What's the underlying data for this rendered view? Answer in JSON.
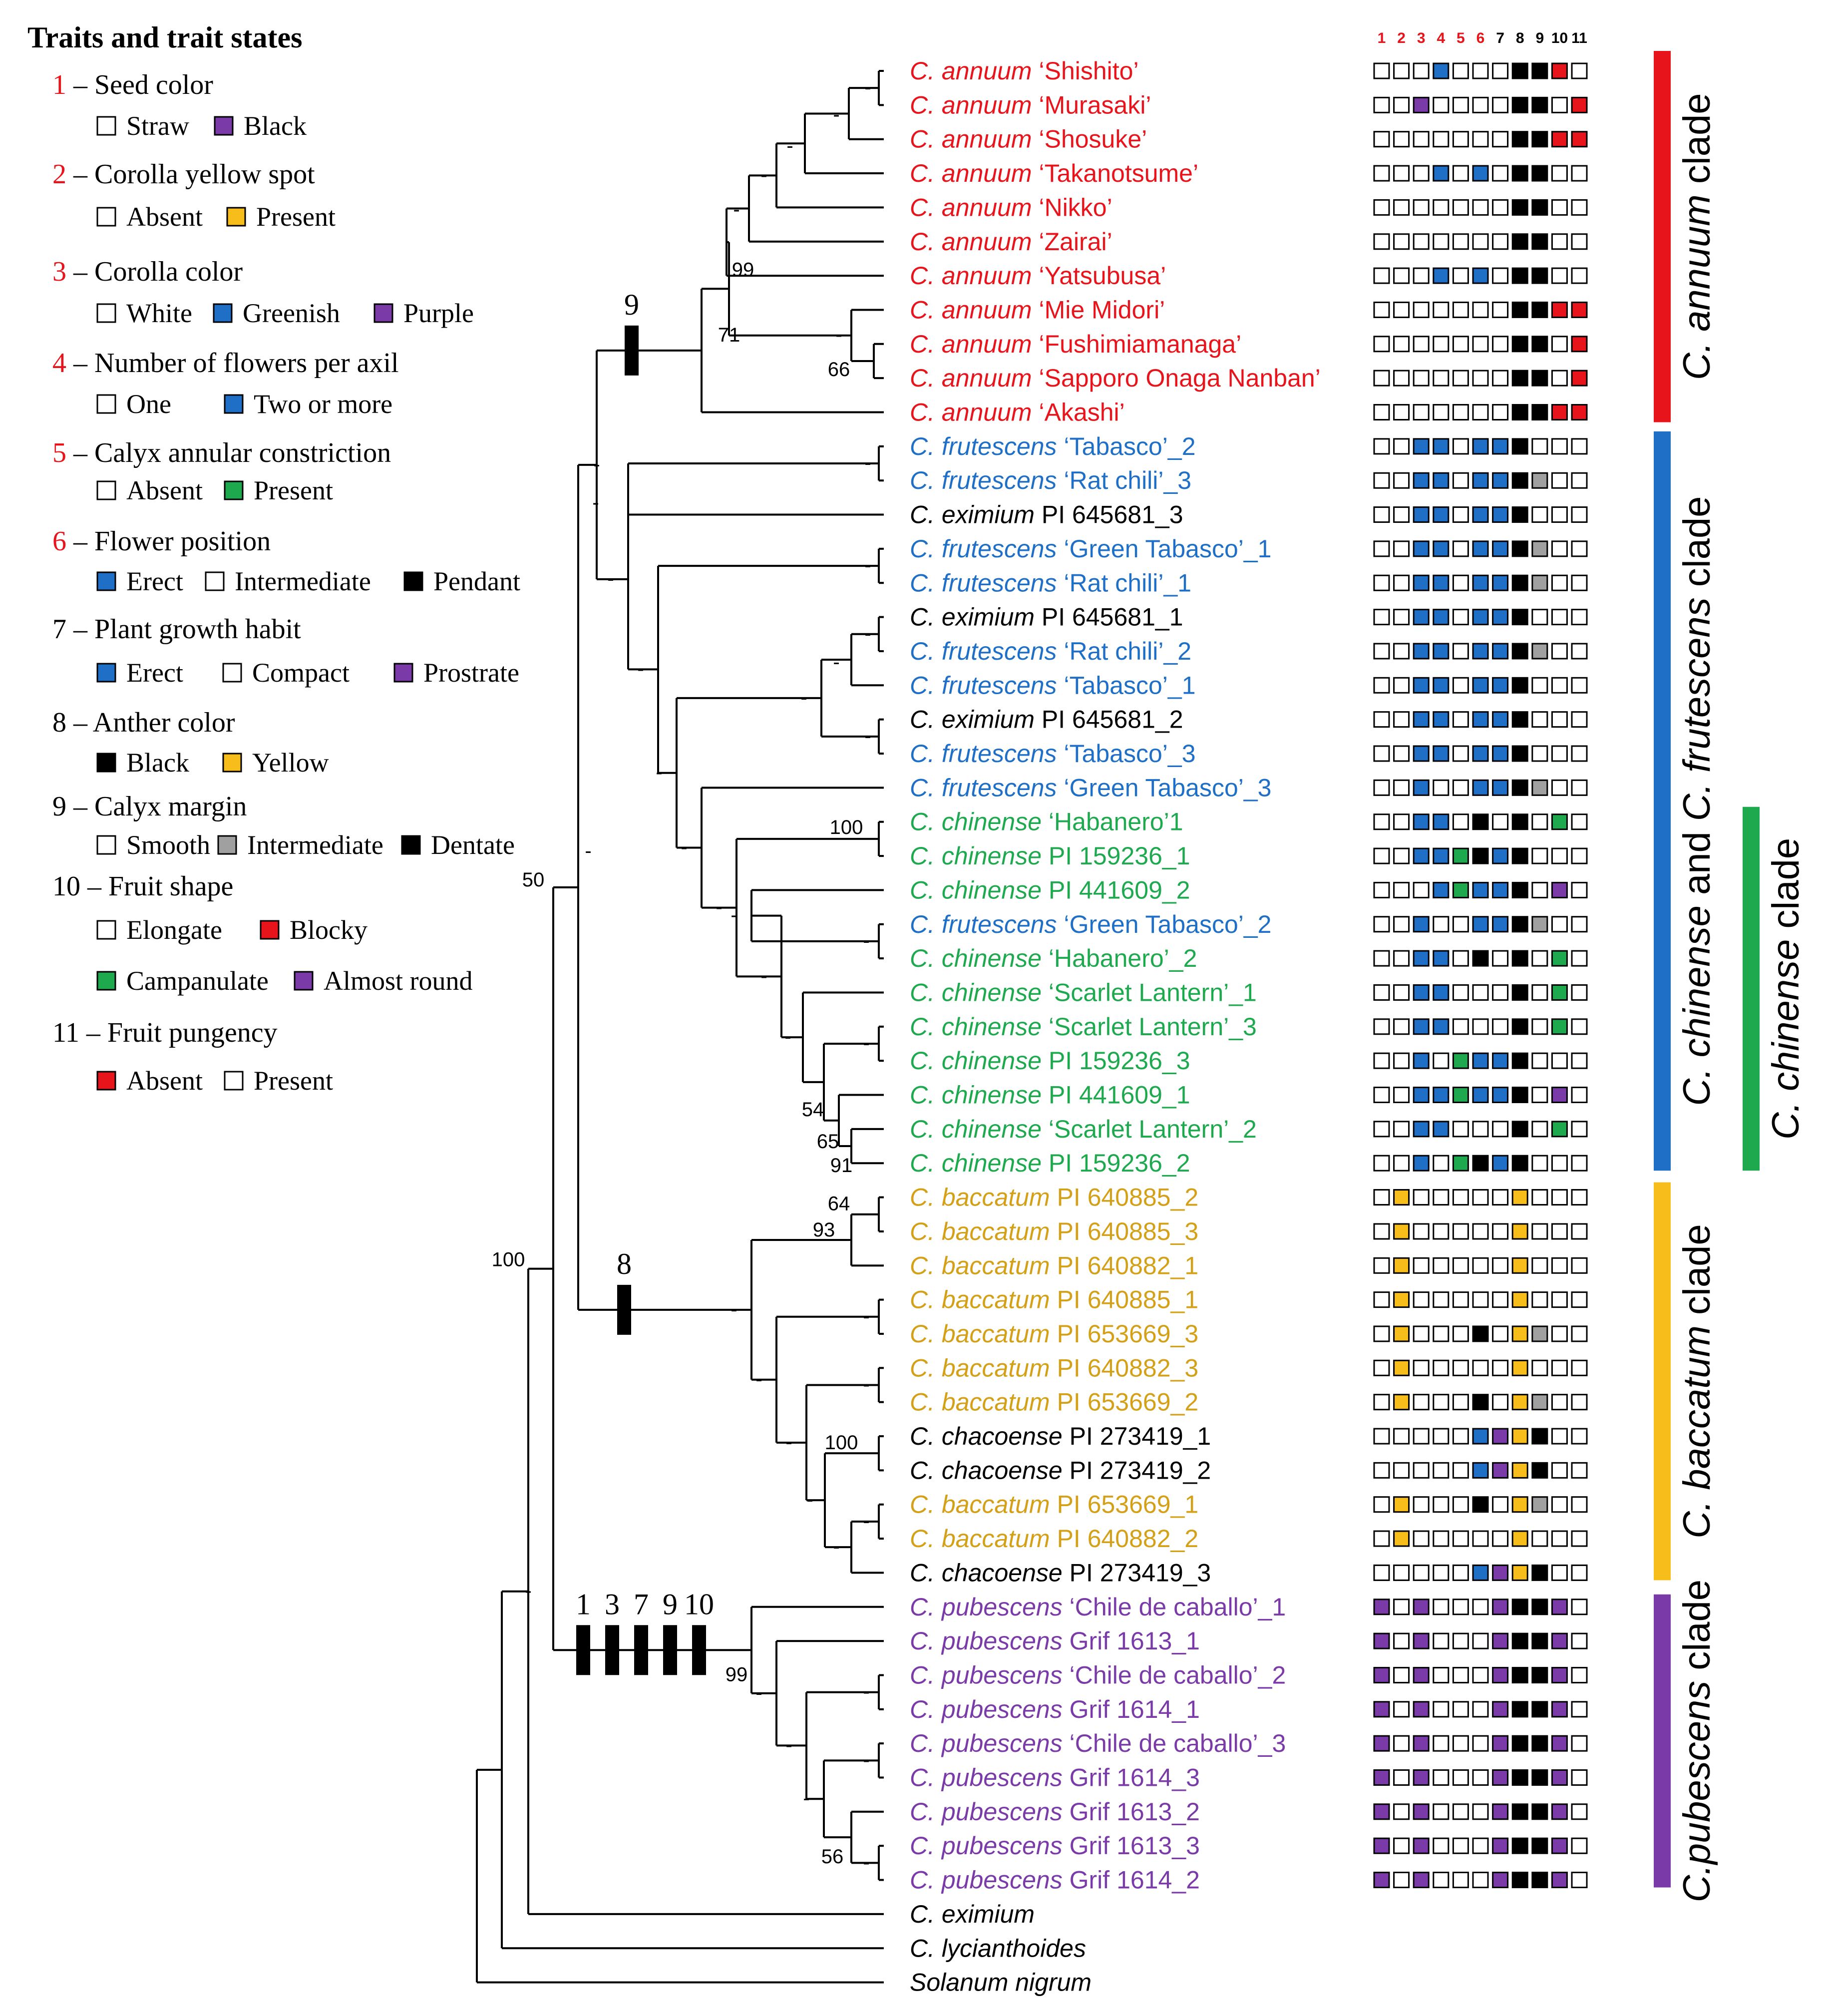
{
  "legend": {
    "title": "Traits and trait states",
    "traits": [
      {
        "num": "1",
        "num_color": "#e8141b",
        "name": "Seed color",
        "states": [
          {
            "label": "Straw",
            "color": "#ffffff"
          },
          {
            "label": "Black",
            "color": "#7a3aa8"
          }
        ]
      },
      {
        "num": "2",
        "num_color": "#e8141b",
        "name": "Corolla yellow spot",
        "states": [
          {
            "label": "Absent",
            "color": "#ffffff"
          },
          {
            "label": "Present",
            "color": "#f7bd1a"
          }
        ]
      },
      {
        "num": "3",
        "num_color": "#e8141b",
        "name": "Corolla color",
        "states": [
          {
            "label": "White",
            "color": "#ffffff"
          },
          {
            "label": "Greenish",
            "color": "#1f6fc7"
          },
          {
            "label": "Purple",
            "color": "#7a3aa8"
          }
        ]
      },
      {
        "num": "4",
        "num_color": "#e8141b",
        "name": "Number of flowers per axil",
        "states": [
          {
            "label": "One",
            "color": "#ffffff"
          },
          {
            "label": "Two or more",
            "color": "#1f6fc7"
          }
        ]
      },
      {
        "num": "5",
        "num_color": "#e8141b",
        "name": "Calyx annular constriction",
        "states": [
          {
            "label": "Absent",
            "color": "#ffffff"
          },
          {
            "label": "Present",
            "color": "#1ea94f"
          }
        ]
      },
      {
        "num": "6",
        "num_color": "#e8141b",
        "name": "Flower position",
        "states": [
          {
            "label": "Erect",
            "color": "#1f6fc7"
          },
          {
            "label": "Intermediate",
            "color": "#ffffff"
          },
          {
            "label": "Pendant",
            "color": "#000000"
          }
        ]
      },
      {
        "num": "7",
        "num_color": "#000000",
        "name": "Plant growth habit",
        "states": [
          {
            "label": "Erect",
            "color": "#1f6fc7"
          },
          {
            "label": "Compact",
            "color": "#ffffff"
          },
          {
            "label": "Prostrate",
            "color": "#7a3aa8"
          }
        ]
      },
      {
        "num": "8",
        "num_color": "#000000",
        "name": "Anther color",
        "states": [
          {
            "label": "Black",
            "color": "#000000"
          },
          {
            "label": "Yellow",
            "color": "#f7bd1a"
          }
        ]
      },
      {
        "num": "9",
        "num_color": "#000000",
        "name": "Calyx margin",
        "states": [
          {
            "label": "Smooth",
            "color": "#ffffff"
          },
          {
            "label": "Intermediate",
            "color": "#a0a0a0"
          },
          {
            "label": "Dentate",
            "color": "#000000"
          }
        ]
      },
      {
        "num": "10",
        "num_color": "#000000",
        "name": "Fruit shape",
        "states": [
          {
            "label": "Elongate",
            "color": "#ffffff"
          },
          {
            "label": "Blocky",
            "color": "#e8141b"
          },
          {
            "label": "Campanulate",
            "color": "#1ea94f"
          },
          {
            "label": "Almost round",
            "color": "#7a3aa8"
          }
        ]
      },
      {
        "num": "11",
        "num_color": "#000000",
        "name": "Fruit pungency",
        "states": [
          {
            "label": "Absent",
            "color": "#e8141b"
          },
          {
            "label": "Present",
            "color": "#ffffff"
          }
        ]
      }
    ]
  },
  "matrix_header": {
    "columns": [
      "1",
      "2",
      "3",
      "4",
      "5",
      "6",
      "7",
      "8",
      "9",
      "10",
      "11"
    ],
    "colors": [
      "#e8141b",
      "#e8141b",
      "#e8141b",
      "#e8141b",
      "#e8141b",
      "#e8141b",
      "#000000",
      "#000000",
      "#000000",
      "#000000",
      "#000000"
    ]
  },
  "colors": {
    "annuum": "#e8141b",
    "frutescens": "#1f6fc7",
    "chinense": "#1ea94f",
    "baccatum": "#d4a017",
    "pubescens": "#7a3aa8",
    "black": "#000000"
  },
  "state_colors": {
    "W": "#ffffff",
    "B": "#1f6fc7",
    "K": "#000000",
    "P": "#7a3aa8",
    "G": "#1ea94f",
    "Y": "#f7bd1a",
    "R": "#e8141b",
    "S": "#a0a0a0"
  },
  "taxa": [
    {
      "genus": "C. annuum",
      "rest": " ‘Shishito’",
      "color": "annuum",
      "states": "WWWBWWWKKRW"
    },
    {
      "genus": "C. annuum",
      "rest": " ‘Murasaki’",
      "color": "annuum",
      "states": "WWPWWWWKKWR"
    },
    {
      "genus": "C. annuum",
      "rest": " ‘Shosuke’",
      "color": "annuum",
      "states": "WWWWWWWKKRR"
    },
    {
      "genus": "C. annuum",
      "rest": " ‘Takanotsume’",
      "color": "annuum",
      "states": "WWWBWBWKKWW"
    },
    {
      "genus": "C. annuum",
      "rest": " ‘Nikko’",
      "color": "annuum",
      "states": "WWWWWWWKKWW"
    },
    {
      "genus": "C. annuum",
      "rest": " ‘Zairai’",
      "color": "annuum",
      "states": "WWWWWWWKKWW"
    },
    {
      "genus": "C. annuum",
      "rest": " ‘Yatsubusa’",
      "color": "annuum",
      "states": "WWWBWBWKKWW"
    },
    {
      "genus": "C. annuum",
      "rest": " ‘Mie Midori’",
      "color": "annuum",
      "states": "WWWWWWWKKRR"
    },
    {
      "genus": "C. annuum",
      "rest": " ‘Fushimiamanaga’",
      "color": "annuum",
      "states": "WWWWWWWKKWR"
    },
    {
      "genus": "C. annuum",
      "rest": " ‘Sapporo Onaga Nanban’",
      "color": "annuum",
      "states": "WWWWWWWKKWR"
    },
    {
      "genus": "C. annuum",
      "rest": " ‘Akashi’",
      "color": "annuum",
      "states": "WWWWWWWKKRR"
    },
    {
      "genus": "C. frutescens",
      "rest": " ‘Tabasco’_2",
      "color": "frutescens",
      "states": "WWBBWBBKWWW"
    },
    {
      "genus": "C. frutescens",
      "rest": " ‘Rat chili’_3",
      "color": "frutescens",
      "states": "WWBBWBBKSWW"
    },
    {
      "genus": "C. eximium",
      "rest": " PI 645681_3",
      "color": "black",
      "states": "WWBBWBBKWWW"
    },
    {
      "genus": "C. frutescens",
      "rest": " ‘Green Tabasco’_1",
      "color": "frutescens",
      "states": "WWBBWBBKSWW"
    },
    {
      "genus": "C. frutescens",
      "rest": " ‘Rat chili’_1",
      "color": "frutescens",
      "states": "WWBBWBBKSWW"
    },
    {
      "genus": "C. eximium",
      "rest": " PI 645681_1",
      "color": "black",
      "states": "WWBBWBBKWWW"
    },
    {
      "genus": "C. frutescens",
      "rest": " ‘Rat chili’_2",
      "color": "frutescens",
      "states": "WWBBWBBKSWW"
    },
    {
      "genus": "C. frutescens",
      "rest": " ‘Tabasco’_1",
      "color": "frutescens",
      "states": "WWBBWBBKWWW"
    },
    {
      "genus": "C. eximium",
      "rest": " PI 645681_2",
      "color": "black",
      "states": "WWBBWBBKWWW"
    },
    {
      "genus": "C. frutescens",
      "rest": " ‘Tabasco’_3",
      "color": "frutescens",
      "states": "WWBBWBBKWWW"
    },
    {
      "genus": "C. frutescens",
      "rest": " ‘Green Tabasco’_3",
      "color": "frutescens",
      "states": "WWBWWBBKSWW"
    },
    {
      "genus": "C. chinense",
      "rest": " ‘Habanero’1",
      "color": "chinense",
      "states": "WWBBWKWKWGW"
    },
    {
      "genus": "C. chinense",
      "rest": " PI 159236_1",
      "color": "chinense",
      "states": "WWBBGKBKWWW"
    },
    {
      "genus": "C. chinense",
      "rest": " PI 441609_2",
      "color": "chinense",
      "states": "WWWBGBBKWPW"
    },
    {
      "genus": "C. frutescens",
      "rest": " ‘Green Tabasco’_2",
      "color": "frutescens",
      "states": "WWBWWBBKSWW"
    },
    {
      "genus": "C. chinense",
      "rest": " ‘Habanero’_2",
      "color": "chinense",
      "states": "WWBBWKWKWGW"
    },
    {
      "genus": "C. chinense",
      "rest": " ‘Scarlet Lantern’_1",
      "color": "chinense",
      "states": "WWBBWWWKWGW"
    },
    {
      "genus": "C. chinense",
      "rest": " ‘Scarlet Lantern’_3",
      "color": "chinense",
      "states": "WWBBWWWKWGW"
    },
    {
      "genus": "C. chinense",
      "rest": " PI 159236_3",
      "color": "chinense",
      "states": "WWBWGBBKWWW"
    },
    {
      "genus": "C. chinense",
      "rest": " PI 441609_1",
      "color": "chinense",
      "states": "WWBBGBBKWPW"
    },
    {
      "genus": "C. chinense",
      "rest": " ‘Scarlet Lantern’_2",
      "color": "chinense",
      "states": "WWBBWWWKWGW"
    },
    {
      "genus": "C. chinense",
      "rest": " PI 159236_2",
      "color": "chinense",
      "states": "WWBWGKBKWWW"
    },
    {
      "genus": "C. baccatum",
      "rest": " PI 640885_2",
      "color": "baccatum",
      "states": "WYWWWWWYWWW"
    },
    {
      "genus": "C. baccatum",
      "rest": " PI 640885_3",
      "color": "baccatum",
      "states": "WYWWWWWYWWW"
    },
    {
      "genus": "C. baccatum",
      "rest": " PI 640882_1",
      "color": "baccatum",
      "states": "WYWWWWWYWWW"
    },
    {
      "genus": "C. baccatum",
      "rest": " PI 640885_1",
      "color": "baccatum",
      "states": "WYWWWWWYWWW"
    },
    {
      "genus": "C. baccatum",
      "rest": " PI 653669_3",
      "color": "baccatum",
      "states": "WYWWWKWYSWW"
    },
    {
      "genus": "C. baccatum",
      "rest": " PI 640882_3",
      "color": "baccatum",
      "states": "WYWWWWWYWWW"
    },
    {
      "genus": "C. baccatum",
      "rest": " PI 653669_2",
      "color": "baccatum",
      "states": "WYWWWKWYSWW"
    },
    {
      "genus": "C. chacoense",
      "rest": " PI 273419_1",
      "color": "black",
      "states": "WWWWWBPYKWW"
    },
    {
      "genus": "C. chacoense",
      "rest": " PI 273419_2",
      "color": "black",
      "states": "WWWWWBPYKWW"
    },
    {
      "genus": "C. baccatum",
      "rest": " PI 653669_1",
      "color": "baccatum",
      "states": "WYWWWKWYSWW"
    },
    {
      "genus": "C. baccatum",
      "rest": " PI 640882_2",
      "color": "baccatum",
      "states": "WYWWWWWYWWW"
    },
    {
      "genus": "C. chacoense",
      "rest": " PI 273419_3",
      "color": "black",
      "states": "WWWWWBPYKWW"
    },
    {
      "genus": "C. pubescens",
      "rest": " ‘Chile de caballo’_1",
      "color": "pubescens",
      "states": "PWPWWWPKKPW"
    },
    {
      "genus": "C. pubescens",
      "rest": " Grif 1613_1",
      "color": "pubescens",
      "states": "PWPWWWPKKPW"
    },
    {
      "genus": "C. pubescens",
      "rest": " ‘Chile de caballo’_2",
      "color": "pubescens",
      "states": "PWPWWWPKKPW"
    },
    {
      "genus": "C. pubescens",
      "rest": " Grif 1614_1",
      "color": "pubescens",
      "states": "PWPWWWPKKPW"
    },
    {
      "genus": "C. pubescens",
      "rest": " ‘Chile de caballo’_3",
      "color": "pubescens",
      "states": "PWPWWWPKKPW"
    },
    {
      "genus": "C. pubescens",
      "rest": " Grif 1614_3",
      "color": "pubescens",
      "states": "PWPWWWPKKPW"
    },
    {
      "genus": "C. pubescens",
      "rest": " Grif 1613_2",
      "color": "pubescens",
      "states": "PWPWWWPKKPW"
    },
    {
      "genus": "C. pubescens",
      "rest": " Grif 1613_3",
      "color": "pubescens",
      "states": "PWPWWWPKKPW"
    },
    {
      "genus": "C. pubescens",
      "rest": " Grif 1614_2",
      "color": "pubescens",
      "states": "PWPWWWPKKPW"
    },
    {
      "genus": "C. eximium",
      "rest": "",
      "color": "black",
      "states": ""
    },
    {
      "genus": "C. lycianthoides",
      "rest": "",
      "color": "black",
      "states": ""
    },
    {
      "genus": "Solanum nigrum",
      "rest": "",
      "color": "black",
      "states": ""
    }
  ],
  "support_labels": {
    "s99_annuum": "99",
    "s71": "71",
    "s66": "66",
    "s100_chinense": "100",
    "s54": "54",
    "s65": "65",
    "s91": "91",
    "s64": "64",
    "s93": "93",
    "s100_chacoense": "100",
    "s99_pubescens": "99",
    "s56": "56",
    "s50": "50",
    "s100_root": "100",
    "dash": "-"
  },
  "apomorphies": {
    "annuum": "9",
    "baccatum": "8",
    "pubescens": [
      "1",
      "3",
      "7",
      "9",
      "10"
    ]
  },
  "clades": [
    {
      "italic": "C. annuum",
      "plain": " clade",
      "color": "#e8141b"
    },
    {
      "italic": "C. chinense",
      "plain": " and ",
      "italic2": "C. frutescens",
      "plain2": " clade",
      "color": "#1f6fc7"
    },
    {
      "italic": "C. chinense",
      "plain": " clade",
      "color": "#1ea94f"
    },
    {
      "italic": "C. baccatum",
      "plain": " clade",
      "color": "#f7bd1a"
    },
    {
      "italic": "C.pubescens",
      "plain": " clade",
      "color": "#7a3aa8"
    }
  ]
}
